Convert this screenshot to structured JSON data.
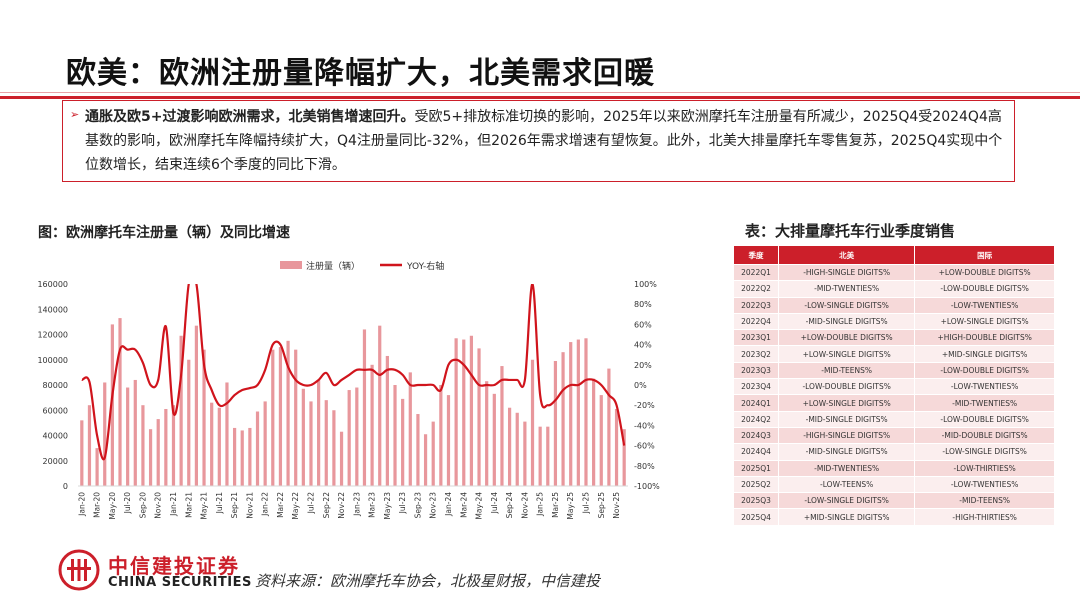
{
  "page": {
    "title": "欧美：欧洲注册量降幅扩大，北美需求回暖",
    "summary_bold": "通胀及欧5+过渡影响欧洲需求，北美销售增速回升。",
    "summary_rest": "受欧5+排放标准切换的影响，2025年以来欧洲摩托车注册量有所减少，2025Q4受2024Q4高基数的影响，欧洲摩托车降幅持续扩大，Q4注册量同比-32%，但2026年需求增速有望恢复。此外，北美大排量摩托车零售复苏，2025Q4实现中个位数增长，结束连续6个季度的同比下滑。",
    "chart_title": "图：欧洲摩托车注册量（辆）及同比增速",
    "table_title": "表：大排量摩托车行业季度销售",
    "source": "资料来源：欧洲摩托车协会，北极星财报，中信建投",
    "logo_cn": "中信建投证券",
    "logo_en": "CHINA SECURITIES",
    "accent_color": "#cc1f2a"
  },
  "chart_data": {
    "type": "bar",
    "series": [
      {
        "name": "注册量（辆）",
        "kind": "bar",
        "axis": "left",
        "color": "#e8979c",
        "values": [
          52000,
          64000,
          30000,
          82000,
          128000,
          133000,
          78000,
          84000,
          64000,
          45000,
          53000,
          61000,
          64000,
          119000,
          100000,
          127000,
          108000,
          66000,
          62000,
          82000,
          46000,
          44000,
          46000,
          59000,
          67000,
          108000,
          110000,
          115000,
          108000,
          77000,
          67000,
          84000,
          68000,
          60000,
          43000,
          76000,
          78000,
          124000,
          96000,
          127000,
          103000,
          80000,
          69000,
          90000,
          57000,
          41000,
          51000,
          80000,
          72000,
          117000,
          116000,
          119000,
          109000,
          83000,
          73000,
          95000,
          62000,
          58000,
          51000,
          100000,
          47000,
          47000,
          99000,
          106000,
          114000,
          116000,
          117000,
          85000,
          72000,
          93000,
          61000,
          45000
        ]
      },
      {
        "name": "YOY-右轴",
        "kind": "line",
        "axis": "right",
        "color": "#d0141c",
        "values": [
          5,
          3,
          -50,
          -72,
          -10,
          35,
          35,
          35,
          22,
          0,
          5,
          58,
          -28,
          10,
          100,
          100,
          20,
          -5,
          -20,
          -18,
          -10,
          -5,
          -3,
          0,
          15,
          40,
          40,
          18,
          5,
          0,
          0,
          5,
          12,
          0,
          5,
          10,
          15,
          15,
          15,
          10,
          15,
          15,
          10,
          0,
          0,
          0,
          0,
          -5,
          20,
          25,
          20,
          10,
          0,
          0,
          0,
          5,
          5,
          5,
          5,
          100,
          -10,
          -20,
          -15,
          -5,
          0,
          0,
          5,
          5,
          0,
          -10,
          -20,
          -60
        ]
      }
    ],
    "x": [
      "Jan-20",
      "Feb-20",
      "Mar-20",
      "Apr-20",
      "May-20",
      "Jun-20",
      "Jul-20",
      "Aug-20",
      "Sep-20",
      "Oct-20",
      "Nov-20",
      "Dec-20",
      "Jan-21",
      "Feb-21",
      "Mar-21",
      "Apr-21",
      "May-21",
      "Jun-21",
      "Jul-21",
      "Aug-21",
      "Sep-21",
      "Oct-21",
      "Nov-21",
      "Dec-21",
      "Jan-22",
      "Feb-22",
      "Mar-22",
      "Apr-22",
      "May-22",
      "Jun-22",
      "Jul-22",
      "Aug-22",
      "Sep-22",
      "Oct-22",
      "Nov-22",
      "Dec-22",
      "Jan-23",
      "Feb-23",
      "Mar-23",
      "Apr-23",
      "May-23",
      "Jun-23",
      "Jul-23",
      "Aug-23",
      "Sep-23",
      "Oct-23",
      "Nov-23",
      "Dec-23",
      "Jan-24",
      "Feb-24",
      "Mar-24",
      "Apr-24",
      "May-24",
      "Jun-24",
      "Jul-24",
      "Aug-24",
      "Sep-24",
      "Oct-24",
      "Nov-24",
      "Dec-24",
      "Jan-25",
      "Feb-25",
      "Mar-25",
      "Apr-25",
      "May-25",
      "Jun-25",
      "Jul-25",
      "Aug-25",
      "Sep-25",
      "Oct-25",
      "Nov-25",
      "Dec-25"
    ],
    "left_ticks": [
      "160000",
      "140000",
      "120000",
      "100000",
      "80000",
      "60000",
      "40000",
      "20000",
      "0"
    ],
    "right_ticks": [
      "100%",
      "80%",
      "60%",
      "40%",
      "20%",
      "0%",
      "-20%",
      "-40%",
      "-60%",
      "-80%",
      "-100%"
    ],
    "ylim_left": [
      0,
      160000
    ],
    "ylim_right": [
      -100,
      100
    ],
    "legend_position": "top"
  },
  "table": {
    "headers": [
      "季度",
      "北美",
      "国际"
    ],
    "rows": [
      [
        "2022Q1",
        "-HIGH-SINGLE DIGITS%",
        "+LOW-DOUBLE DIGITS%"
      ],
      [
        "2022Q2",
        "-MID-TWENTIES%",
        "-LOW-DOUBLE DIGITS%"
      ],
      [
        "2022Q3",
        "-LOW-SINGLE DIGITS%",
        "-LOW-TWENTIES%"
      ],
      [
        "2022Q4",
        "-MID-SINGLE DIGITS%",
        "+LOW-SINGLE DIGITS%"
      ],
      [
        "2023Q1",
        "+LOW-DOUBLE DIGITS%",
        "+HIGH-DOUBLE DIGITS%"
      ],
      [
        "2023Q2",
        "+LOW-SINGLE DIGITS%",
        "+MID-SINGLE DIGITS%"
      ],
      [
        "2023Q3",
        "-MID-TEENS%",
        "-LOW-DOUBLE DIGITS%"
      ],
      [
        "2023Q4",
        "-LOW-DOUBLE DIGITS%",
        "-LOW-TWENTIES%"
      ],
      [
        "2024Q1",
        "+LOW-SINGLE DIGITS%",
        "-MID-TWENTIES%"
      ],
      [
        "2024Q2",
        "-MID-SINGLE DIGITS%",
        "-LOW-DOUBLE DIGITS%"
      ],
      [
        "2024Q3",
        "-HIGH-SINGLE DIGITS%",
        "-MID-DOUBLE DIGITS%"
      ],
      [
        "2024Q4",
        "-MID-SINGLE DIGITS%",
        "-LOW-SINGLE DIGITS%"
      ],
      [
        "2025Q1",
        "-MID-TWENTIES%",
        "-LOW-THIRTIES%"
      ],
      [
        "2025Q2",
        "-LOW-TEENS%",
        "-LOW-TWENTIES%"
      ],
      [
        "2025Q3",
        "-LOW-SINGLE DIGITS%",
        "-MID-TEENS%"
      ],
      [
        "2025Q4",
        "+MID-SINGLE DIGITS%",
        "-HIGH-THIRTIES%"
      ]
    ]
  }
}
